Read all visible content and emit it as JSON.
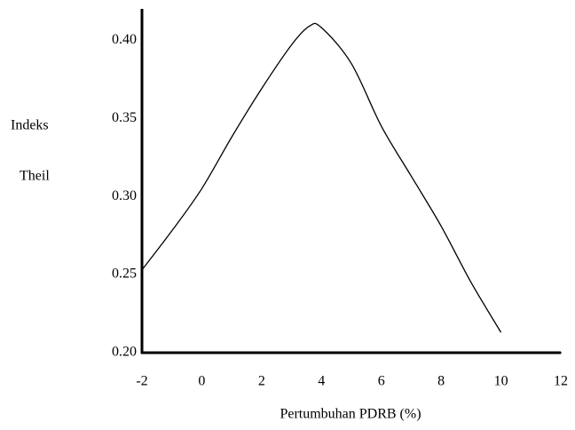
{
  "chart_data": {
    "type": "line",
    "x_label": "Pertumbuhan PDRB (%)",
    "y_label_lines": [
      "Indeks",
      "Theil"
    ],
    "x": [
      -2,
      -1,
      0,
      1,
      2,
      3,
      3.6,
      4,
      5,
      6,
      7,
      8,
      9,
      10
    ],
    "series": [
      {
        "color": "#000000",
        "values": [
          0.253,
          0.278,
          0.305,
          0.338,
          0.369,
          0.397,
          0.409,
          0.408,
          0.385,
          0.345,
          0.313,
          0.281,
          0.245,
          0.213
        ]
      }
    ],
    "xlim": [
      -2,
      12
    ],
    "xticks": [
      -2,
      0,
      2,
      4,
      6,
      8,
      10,
      12
    ],
    "ylim": [
      0.2,
      0.42
    ],
    "yticks": [
      {
        "value": 0.2,
        "label": "0.20"
      },
      {
        "value": 0.25,
        "label": "0.25"
      },
      {
        "value": 0.3,
        "label": "0.30"
      },
      {
        "value": 0.35,
        "label": "0.35"
      },
      {
        "value": 0.4,
        "label": "0.40"
      }
    ],
    "grid": false
  }
}
